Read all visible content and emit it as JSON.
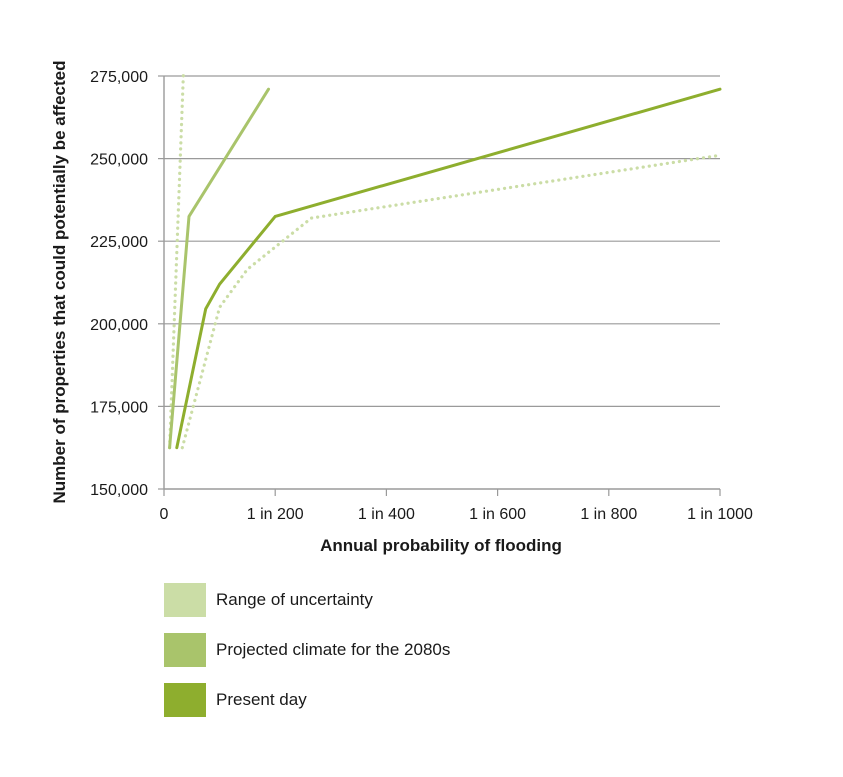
{
  "chart_data": {
    "type": "line",
    "xlabel": "Annual probability of flooding",
    "ylabel": "Number of properties that could potentially be affected",
    "xlim": [
      0,
      1000
    ],
    "ylim": [
      150000,
      275000
    ],
    "x_ticks": [
      0,
      200,
      400,
      600,
      800,
      1000
    ],
    "x_tick_labels": [
      "0",
      "1 in 200",
      "1 in 400",
      "1 in 600",
      "1 in 800",
      "1 in 1000"
    ],
    "y_ticks": [
      150000,
      175000,
      200000,
      225000,
      250000,
      275000
    ],
    "y_tick_labels": [
      "150,000",
      "175,000",
      "200,000",
      "225,000",
      "250,000",
      "275,000"
    ],
    "grid": "horizontal",
    "legend_position": "bottom-left",
    "series": [
      {
        "name": "Present day",
        "color": "#8eae2e",
        "style": "solid",
        "x": [
          23,
          75,
          100,
          200,
          1000
        ],
        "y": [
          162500,
          204500,
          212000,
          232500,
          271000
        ]
      },
      {
        "name": "Projected climate for the 2080s",
        "color": "#a9c46b",
        "style": "solid",
        "x": [
          10,
          45,
          188
        ],
        "y": [
          162500,
          232500,
          271000
        ]
      },
      {
        "name": "Range of uncertainty",
        "color": "#cbdda6",
        "style": "dotted",
        "x": [
          10,
          35
        ],
        "y": [
          162500,
          276500
        ]
      },
      {
        "name": "Range of uncertainty",
        "color": "#cbdda6",
        "style": "dotted",
        "x": [
          33,
          100,
          150,
          265,
          1000
        ],
        "y": [
          162500,
          205000,
          216500,
          232000,
          251000
        ]
      }
    ]
  },
  "legend": {
    "items": [
      {
        "label": "Range of uncertainty",
        "color": "#cbdda6"
      },
      {
        "label": "Projected climate for the 2080s",
        "color": "#a9c46b"
      },
      {
        "label": "Present day",
        "color": "#8eae2e"
      }
    ]
  }
}
